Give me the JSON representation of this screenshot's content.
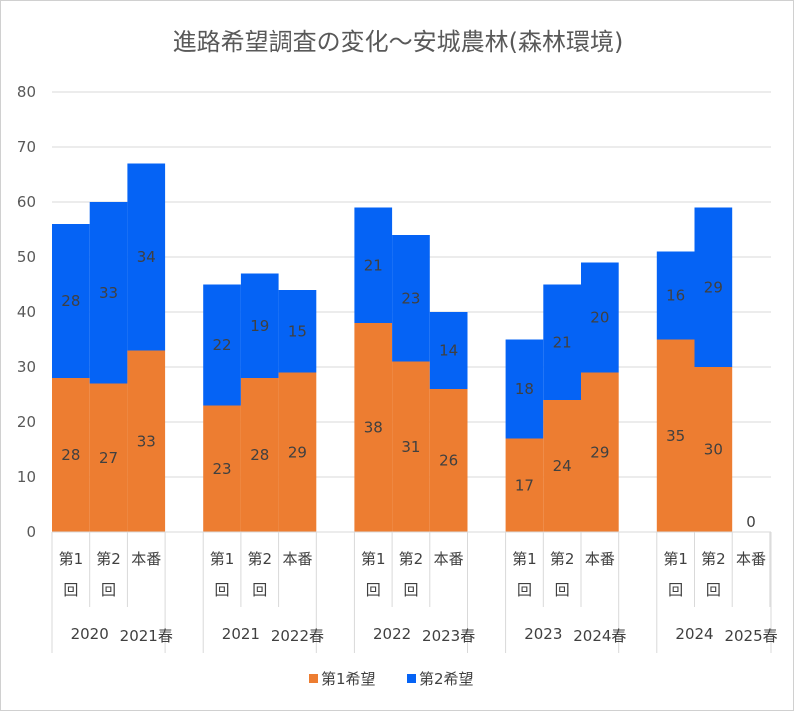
{
  "chart_data": {
    "type": "bar",
    "stacked": true,
    "title": "進路希望調査の変化〜安城農林(森林環境)",
    "ylim": [
      0,
      80
    ],
    "yticks": [
      0,
      10,
      20,
      30,
      40,
      50,
      60,
      70,
      80
    ],
    "categories": [
      {
        "label": "第1回",
        "line1": "第1",
        "line2": "回"
      },
      {
        "label": "第2回",
        "line1": "第2",
        "line2": "回"
      },
      {
        "label": "本番",
        "line1": "本番",
        "line2": ""
      },
      {
        "label": "第1回",
        "line1": "第1",
        "line2": "回"
      },
      {
        "label": "第2回",
        "line1": "第2",
        "line2": "回"
      },
      {
        "label": "本番",
        "line1": "本番",
        "line2": ""
      },
      {
        "label": "第1回",
        "line1": "第1",
        "line2": "回"
      },
      {
        "label": "第2回",
        "line1": "第2",
        "line2": "回"
      },
      {
        "label": "本番",
        "line1": "本番",
        "line2": ""
      },
      {
        "label": "第1回",
        "line1": "第1",
        "line2": "回"
      },
      {
        "label": "第2回",
        "line1": "第2",
        "line2": "回"
      },
      {
        "label": "本番",
        "line1": "本番",
        "line2": ""
      },
      {
        "label": "第1回",
        "line1": "第1",
        "line2": "回"
      },
      {
        "label": "第2回",
        "line1": "第2",
        "line2": "回"
      },
      {
        "label": "本番",
        "line1": "本番",
        "line2": ""
      }
    ],
    "groups": [
      {
        "label": "2020",
        "label_end": "2021春"
      },
      {
        "label": "2021",
        "label_end": "2022春"
      },
      {
        "label": "2022",
        "label_end": "2023春"
      },
      {
        "label": "2023",
        "label_end": "2024春"
      },
      {
        "label": "2024",
        "label_end": "2025春"
      }
    ],
    "series": [
      {
        "name": "第1希望",
        "color": "#ED7D31",
        "values": [
          28,
          27,
          33,
          23,
          28,
          29,
          38,
          31,
          26,
          17,
          24,
          29,
          35,
          30,
          0
        ]
      },
      {
        "name": "第2希望",
        "color": "#0563F5",
        "values": [
          28,
          33,
          34,
          22,
          19,
          15,
          21,
          23,
          14,
          18,
          21,
          20,
          16,
          29,
          null
        ]
      }
    ],
    "extra_labels": [
      {
        "category_index": 14,
        "text": "0"
      }
    ],
    "legend_position": "bottom"
  }
}
